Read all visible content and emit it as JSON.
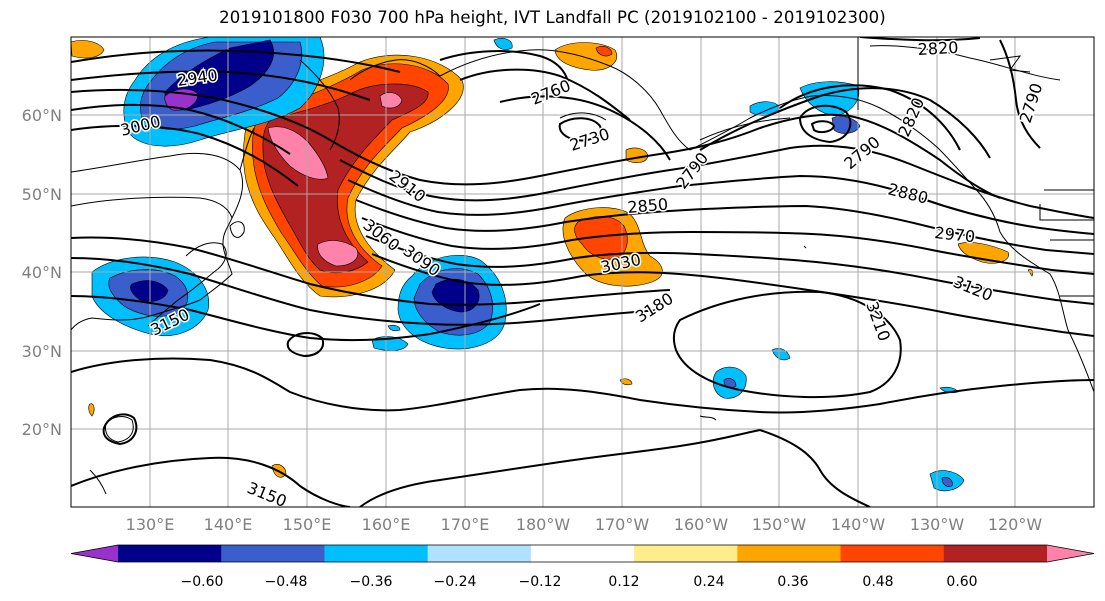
{
  "title": "2019101800 F030 700 hPa height, IVT Landfall PC (2019102100 - 2019102300)",
  "latitude_labels": [
    "60°N",
    "50°N",
    "40°N",
    "30°N",
    "20°N"
  ],
  "longitude_labels": [
    "130°E",
    "140°E",
    "150°E",
    "160°E",
    "170°E",
    "180°W",
    "170°W",
    "160°W",
    "150°W",
    "140°W",
    "130°W",
    "120°W"
  ],
  "contour_labels": [
    "2940",
    "3000",
    "2760",
    "2730",
    "2820",
    "2790",
    "2790",
    "2790",
    "2880",
    "2820",
    "2910",
    "2850",
    "2970",
    "3060",
    "3090",
    "3030",
    "3120",
    "3180",
    "3210",
    "3150",
    "3150"
  ],
  "colorbar": {
    "tick_labels": [
      "−0.60",
      "−0.48",
      "−0.36",
      "−0.24",
      "−0.12",
      "0.12",
      "0.24",
      "0.36",
      "0.48",
      "0.60"
    ],
    "colors": [
      "#9932cc",
      "#00008b",
      "#3a5fcd",
      "#00bfff",
      "#b0e2ff",
      "#ffffff",
      "#ffec8b",
      "#ffa500",
      "#ff4500",
      "#b22222",
      "#ff82ab"
    ]
  },
  "chart_data": {
    "type": "heatmap",
    "title": "2019101800 F030 700 hPa height, IVT Landfall PC (2019102100 - 2019102300)",
    "projection": "PlateCarree",
    "lon_range_east": [
      120,
      250
    ],
    "lat_range": [
      10,
      70
    ],
    "shaded_field": "IVT Landfall PC",
    "shading_levels": [
      -0.6,
      -0.48,
      -0.36,
      -0.24,
      -0.12,
      0.12,
      0.24,
      0.36,
      0.48,
      0.6
    ],
    "contour_field": "700 hPa height",
    "contour_interval": 30,
    "contour_levels_labeled": [
      2730,
      2760,
      2790,
      2820,
      2850,
      2880,
      2910,
      2940,
      2970,
      3000,
      3030,
      3060,
      3090,
      3120,
      3150,
      3180,
      3210
    ],
    "grid": true
  }
}
